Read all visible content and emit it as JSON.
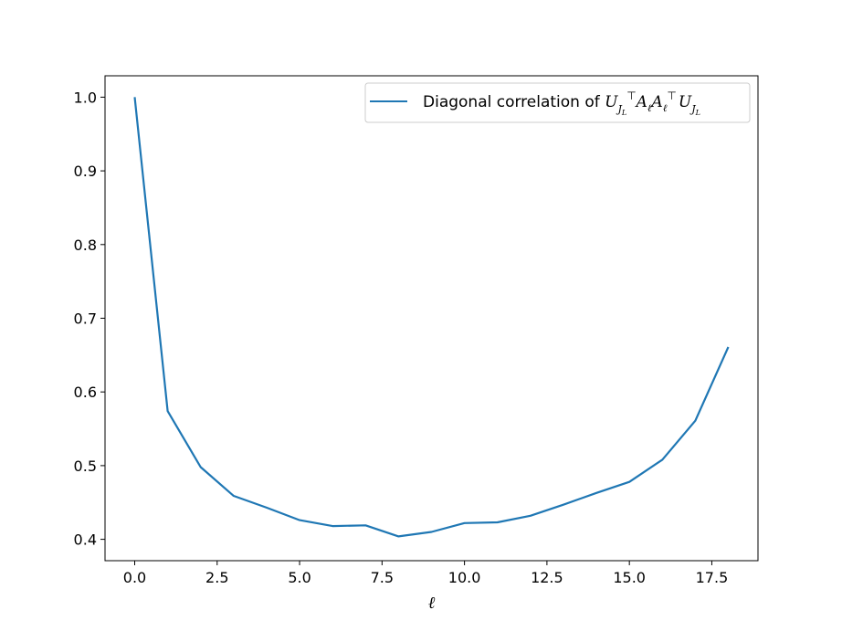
{
  "chart_data": {
    "type": "line",
    "title": "",
    "xlabel": "ℓ",
    "ylabel": "",
    "xlim": [
      -0.9,
      18.9
    ],
    "ylim": [
      0.371,
      1.029
    ],
    "xticks": [
      0,
      2.5,
      5,
      7.5,
      10,
      12.5,
      15,
      17.5
    ],
    "xtick_labels": [
      "0.0",
      "2.5",
      "5.0",
      "7.5",
      "10.0",
      "12.5",
      "15.0",
      "17.5"
    ],
    "yticks": [
      0.4,
      0.5,
      0.6,
      0.7,
      0.8,
      0.9,
      1.0
    ],
    "ytick_labels": [
      "0.4",
      "0.5",
      "0.6",
      "0.7",
      "0.8",
      "0.9",
      "1.0"
    ],
    "grid": false,
    "legend_position": "top-right",
    "series": [
      {
        "name": "Diagonal correlation of U_{J_L}^⊤ A_ℓ A_ℓ^⊤ U_{J_L}",
        "color": "#1f77b4",
        "x": [
          0,
          1,
          2,
          3,
          4,
          5,
          6,
          7,
          8,
          9,
          10,
          11,
          12,
          13,
          14,
          15,
          16,
          17,
          18
        ],
        "y": [
          1.0,
          0.574,
          0.498,
          0.459,
          0.443,
          0.426,
          0.418,
          0.419,
          0.404,
          0.41,
          0.422,
          0.423,
          0.432,
          0.447,
          0.463,
          0.478,
          0.508,
          0.561,
          0.661
        ]
      }
    ],
    "legend": {
      "prefix": "Diagonal correlation of ",
      "U": "U",
      "J": "J",
      "L": "L",
      "T": "⊤",
      "A": "A",
      "ell": "ℓ"
    }
  }
}
